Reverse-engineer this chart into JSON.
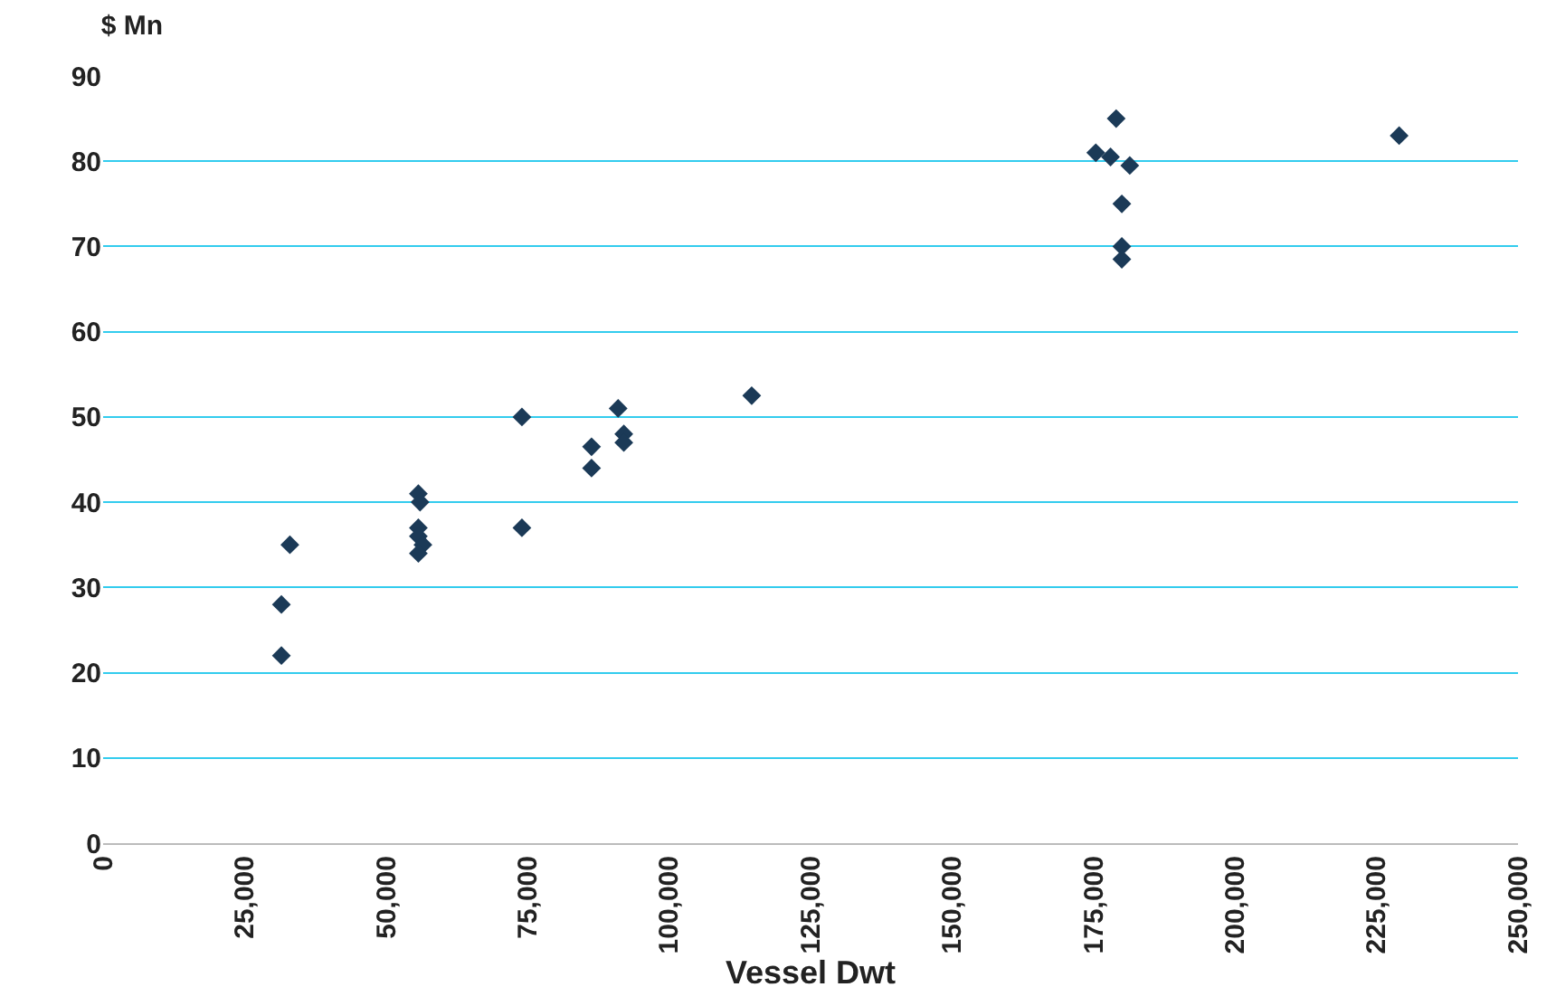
{
  "chart_data": {
    "type": "scatter",
    "title": "$ Mn",
    "xlabel": "Vessel Dwt",
    "x": [
      31500,
      31500,
      33000,
      55700,
      56000,
      55700,
      55700,
      56500,
      55700,
      74000,
      74000,
      86300,
      86300,
      91000,
      92000,
      92000,
      114600,
      179000,
      175400,
      178000,
      181400,
      180000,
      180000,
      180000,
      229000
    ],
    "series": [
      {
        "color": "#1b3a57",
        "values": [
          22,
          28,
          35,
          41,
          40,
          37,
          36,
          35,
          34,
          50,
          37,
          46.5,
          44,
          51,
          48,
          47,
          52.5,
          85,
          81,
          80.5,
          79.5,
          75,
          70,
          68.5,
          83
        ]
      }
    ],
    "marker": "diamond",
    "grid": "y",
    "legend": false,
    "xlim": [
      0,
      250000
    ],
    "xticks": [
      {
        "value": 0,
        "label": "0"
      },
      {
        "value": 25000,
        "label": "25,000"
      },
      {
        "value": 50000,
        "label": "50,000"
      },
      {
        "value": 75000,
        "label": "75,000"
      },
      {
        "value": 100000,
        "label": "100,000"
      },
      {
        "value": 125000,
        "label": "125,000"
      },
      {
        "value": 150000,
        "label": "150,000"
      },
      {
        "value": 175000,
        "label": "175,000"
      },
      {
        "value": 200000,
        "label": "200,000"
      },
      {
        "value": 225000,
        "label": "225,000"
      },
      {
        "value": 250000,
        "label": "250,000"
      }
    ],
    "ylim": [
      0,
      90
    ],
    "yticks": [
      0,
      10,
      20,
      30,
      40,
      50,
      60,
      70,
      80,
      90
    ]
  }
}
